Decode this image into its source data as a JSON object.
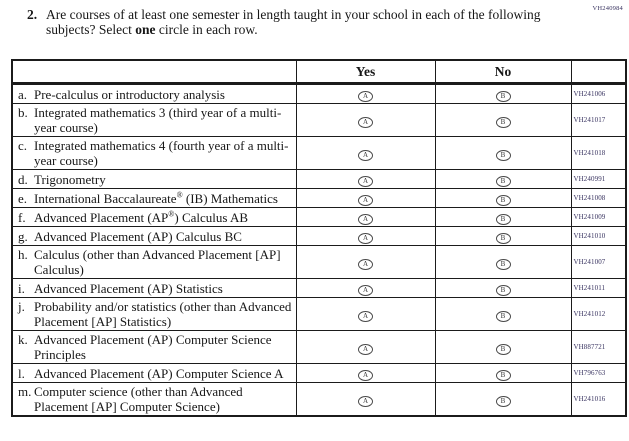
{
  "page": {
    "form_code": "VH240984",
    "code_color": "#37325f",
    "border_color": "#1b1b1b",
    "background_color": "#ffffff"
  },
  "question": {
    "number": "2.",
    "text_before_bold": "Are courses of at least one semester in length taught in your school in each of the following subjects? Select ",
    "bold_word": "one",
    "text_after_bold": " circle in each row."
  },
  "table": {
    "headers": {
      "subject": "",
      "yes": "Yes",
      "no": "No",
      "code": ""
    },
    "bubble": {
      "yes_letter": "A",
      "no_letter": "B"
    },
    "rows": [
      {
        "letter": "a.",
        "subject": "Pre-calculus or introductory analysis",
        "code": "VH241006"
      },
      {
        "letter": "b.",
        "subject": "Integrated mathematics 3 (third year of a multi-year course)",
        "code": "VH241017"
      },
      {
        "letter": "c.",
        "subject": "Integrated mathematics 4 (fourth year of a multi-year course)",
        "code": "VH241018"
      },
      {
        "letter": "d.",
        "subject": "Trigonometry",
        "code": "VH240991"
      },
      {
        "letter": "e.",
        "subject": "International Baccalaureate® (IB) Mathematics",
        "code": "VH241008"
      },
      {
        "letter": "f.",
        "subject": "Advanced Placement (AP®) Calculus AB",
        "code": "VH241009"
      },
      {
        "letter": "g.",
        "subject": "Advanced Placement (AP) Calculus BC",
        "code": "VH241010"
      },
      {
        "letter": "h.",
        "subject": "Calculus (other than Advanced Placement [AP] Calculus)",
        "code": "VH241007"
      },
      {
        "letter": "i.",
        "subject": "Advanced Placement (AP) Statistics",
        "code": "VH241011"
      },
      {
        "letter": "j.",
        "subject": "Probability and/or statistics (other than Advanced Placement [AP] Statistics)",
        "code": "VH241012"
      },
      {
        "letter": "k.",
        "subject": "Advanced Placement (AP) Computer Science Principles",
        "code": "VH887721"
      },
      {
        "letter": "l.",
        "subject": "Advanced Placement (AP) Computer Science A",
        "code": "VH796763"
      },
      {
        "letter": "m.",
        "subject": "Computer science (other than Advanced Placement [AP] Computer Science)",
        "code": "VH241016"
      }
    ]
  }
}
